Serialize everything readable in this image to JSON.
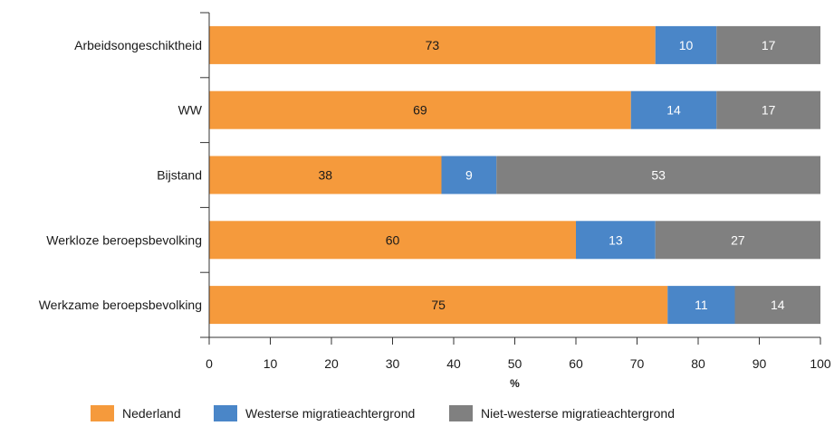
{
  "chart_data": {
    "type": "bar",
    "orientation": "horizontal",
    "stacked": true,
    "categories": [
      "Arbeidsongeschiktheid",
      "WW",
      "Bijstand",
      "Werkloze beroepsbevolking",
      "Werkzame beroepsbevolking"
    ],
    "series": [
      {
        "name": "Nederland",
        "values": [
          73,
          69,
          38,
          60,
          75
        ],
        "color": "#f59a3c",
        "label_color": "#1a1a1a"
      },
      {
        "name": "Westerse migratieachtergrond",
        "values": [
          10,
          14,
          9,
          13,
          11
        ],
        "color": "#4a86c8",
        "label_color": "#ffffff"
      },
      {
        "name": "Niet-westerse migratieachtergrond",
        "values": [
          17,
          17,
          53,
          27,
          14
        ],
        "color": "#808080",
        "label_color": "#ffffff"
      }
    ],
    "xlabel": "%",
    "xlim": [
      0,
      100
    ],
    "xticks": [
      "0",
      "10",
      "20",
      "30",
      "40",
      "50",
      "60",
      "70",
      "80",
      "90",
      "100"
    ],
    "grid": false,
    "legend_position": "bottom"
  }
}
